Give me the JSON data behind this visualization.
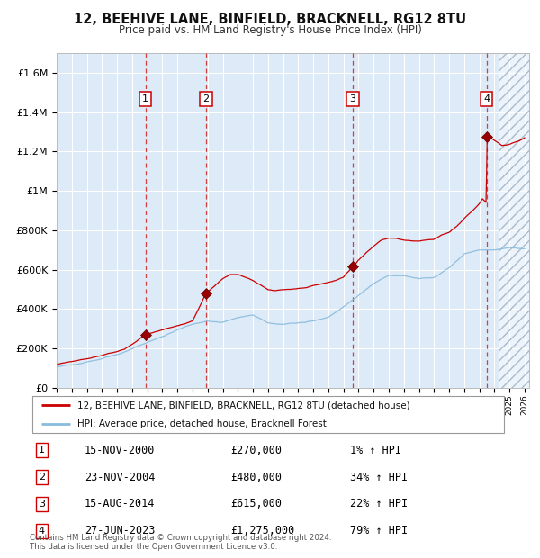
{
  "title": "12, BEEHIVE LANE, BINFIELD, BRACKNELL, RG12 8TU",
  "subtitle": "Price paid vs. HM Land Registry's House Price Index (HPI)",
  "ylim": [
    0,
    1700000
  ],
  "xlim_start": 1995.0,
  "xlim_end": 2026.3,
  "bg_color": "#ddeaf7",
  "grid_color": "#ffffff",
  "red_line_color": "#cc0000",
  "blue_line_color": "#88bbdd",
  "sale_marker_color": "#990000",
  "footnote": "Contains HM Land Registry data © Crown copyright and database right 2024.\nThis data is licensed under the Open Government Licence v3.0.",
  "legend_label_red": "12, BEEHIVE LANE, BINFIELD, BRACKNELL, RG12 8TU (detached house)",
  "legend_label_blue": "HPI: Average price, detached house, Bracknell Forest",
  "sales": [
    {
      "num": 1,
      "date_val": 2000.88,
      "price": 270000,
      "label": "15-NOV-2000",
      "price_str": "£270,000",
      "pct": "1%",
      "dir": "↑"
    },
    {
      "num": 2,
      "date_val": 2004.9,
      "price": 480000,
      "label": "23-NOV-2004",
      "price_str": "£480,000",
      "pct": "34%",
      "dir": "↑"
    },
    {
      "num": 3,
      "date_val": 2014.62,
      "price": 615000,
      "label": "15-AUG-2014",
      "price_str": "£615,000",
      "pct": "22%",
      "dir": "↑"
    },
    {
      "num": 4,
      "date_val": 2023.48,
      "price": 1275000,
      "label": "27-JUN-2023",
      "price_str": "£1,275,000",
      "pct": "79%",
      "dir": "↑"
    }
  ],
  "yticks": [
    0,
    200000,
    400000,
    600000,
    800000,
    1000000,
    1200000,
    1400000,
    1600000
  ],
  "ytick_labels": [
    "£0",
    "£200K",
    "£400K",
    "£600K",
    "£800K",
    "£1M",
    "£1.2M",
    "£1.4M",
    "£1.6M"
  ]
}
